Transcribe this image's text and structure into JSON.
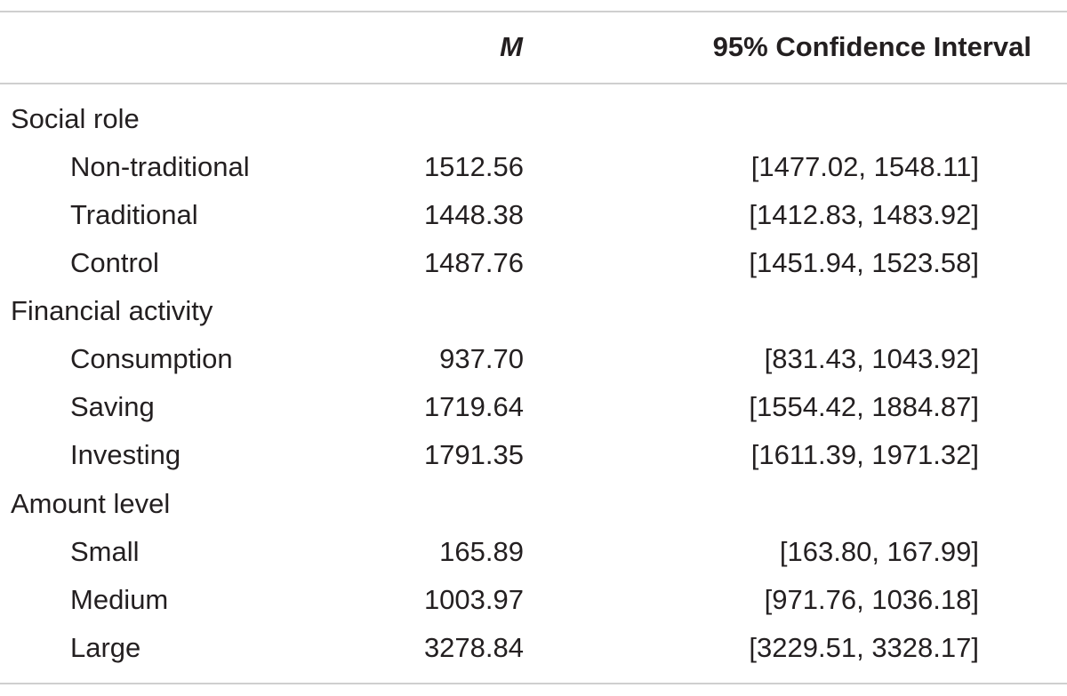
{
  "table": {
    "headers": {
      "label": "",
      "mean": "M",
      "ci": "95% Confidence Interval"
    },
    "groups": [
      {
        "name": "Social role",
        "rows": [
          {
            "label": "Non-traditional",
            "mean": "1512.56",
            "ci": "[1477.02, 1548.11]"
          },
          {
            "label": "Traditional",
            "mean": "1448.38",
            "ci": "[1412.83, 1483.92]"
          },
          {
            "label": "Control",
            "mean": "1487.76",
            "ci": "[1451.94, 1523.58]"
          }
        ]
      },
      {
        "name": "Financial activity",
        "rows": [
          {
            "label": "Consumption",
            "mean": "937.70",
            "ci": "[831.43, 1043.92]"
          },
          {
            "label": "Saving",
            "mean": "1719.64",
            "ci": "[1554.42, 1884.87]"
          },
          {
            "label": "Investing",
            "mean": "1791.35",
            "ci": "[1611.39, 1971.32]"
          }
        ]
      },
      {
        "name": "Amount level",
        "rows": [
          {
            "label": "Small",
            "mean": "165.89",
            "ci": "[163.80, 167.99]"
          },
          {
            "label": "Medium",
            "mean": "1003.97",
            "ci": "[971.76, 1036.18]"
          },
          {
            "label": "Large",
            "mean": "3278.84",
            "ci": "[3229.51, 3328.17]"
          }
        ]
      }
    ]
  }
}
